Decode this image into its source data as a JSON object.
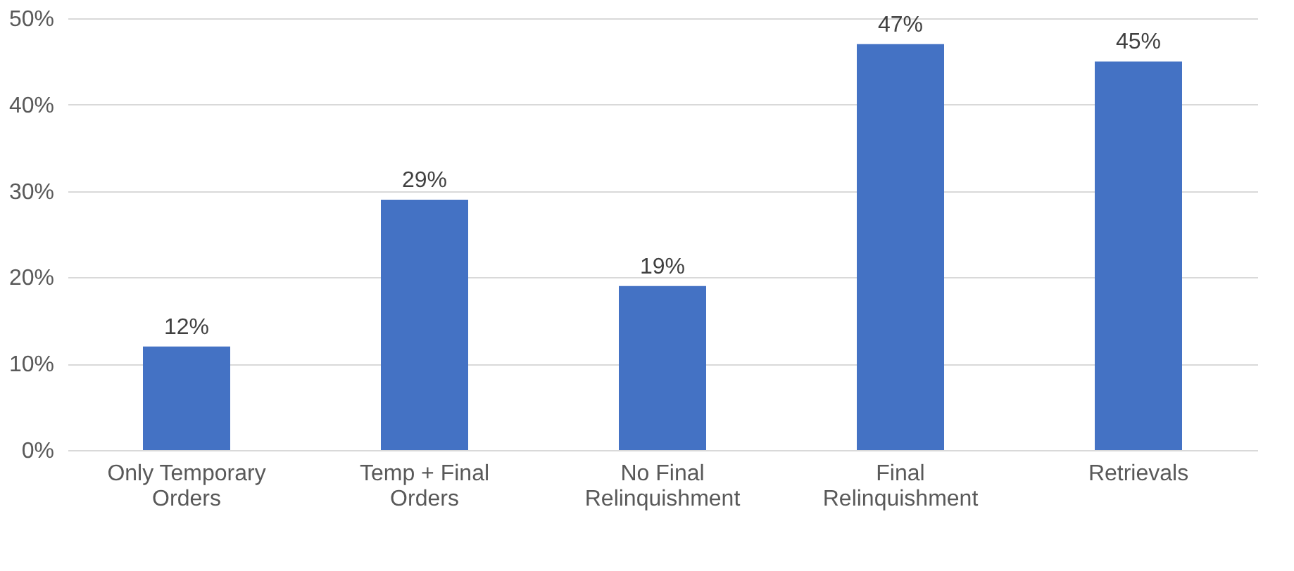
{
  "chart_data": {
    "type": "bar",
    "categories": [
      "Only Temporary Orders",
      "Temp + Final Orders",
      "No Final Relinquishment",
      "Final Relinquishment",
      "Retrievals"
    ],
    "values": [
      12,
      29,
      19,
      47,
      45
    ],
    "value_labels": [
      "12%",
      "29%",
      "19%",
      "47%",
      "45%"
    ],
    "color": "#4472c4",
    "ylim": [
      0,
      50
    ],
    "yticks": [
      {
        "value": 0,
        "label": "0%"
      },
      {
        "value": 10,
        "label": "10%"
      },
      {
        "value": 20,
        "label": "20%"
      },
      {
        "value": 30,
        "label": "30%"
      },
      {
        "value": 40,
        "label": "40%"
      },
      {
        "value": 50,
        "label": "50%"
      }
    ],
    "grid": "y"
  }
}
